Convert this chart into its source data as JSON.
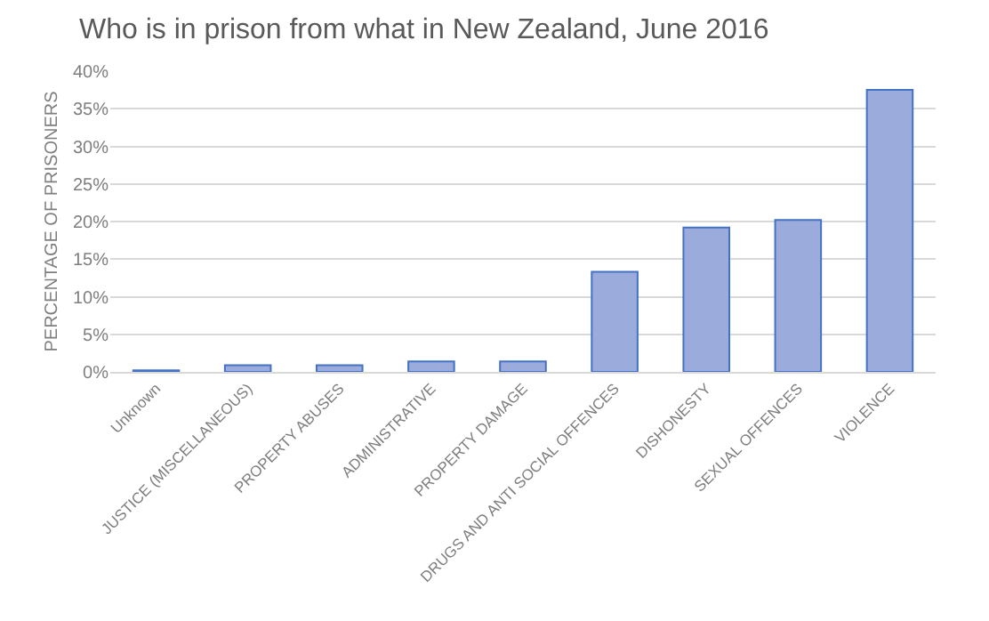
{
  "chart_data": {
    "type": "bar",
    "title": "Who is in prison from what in New Zealand, June 2016",
    "ylabel": "PERCENTAGE OF PRISONERS",
    "categories": [
      "Unknown",
      "JUSTICE (MISCELLANEOUS)",
      "PROPERTY ABUSES",
      "ADMINISTRATIVE",
      "PROPERTY DAMAGE",
      "DRUGS AND ANTI SOCIAL OFFENCES",
      "DISHONESTY",
      "SEXUAL OFFENCES",
      "VIOLENCE"
    ],
    "values": [
      0.2,
      0.9,
      0.9,
      1.4,
      1.4,
      13.3,
      19.2,
      20.2,
      37.5
    ],
    "color": "#9aabdc",
    "ylim": [
      0,
      40
    ],
    "yticks": [
      {
        "value": 0,
        "label": "0%"
      },
      {
        "value": 5,
        "label": "5%"
      },
      {
        "value": 10,
        "label": "10%"
      },
      {
        "value": 15,
        "label": "15%"
      },
      {
        "value": 20,
        "label": "20%"
      },
      {
        "value": 25,
        "label": "25%"
      },
      {
        "value": 30,
        "label": "30%"
      },
      {
        "value": 35,
        "label": "35%"
      },
      {
        "value": 40,
        "label": "40%"
      }
    ],
    "grid": "y",
    "legend": false
  }
}
